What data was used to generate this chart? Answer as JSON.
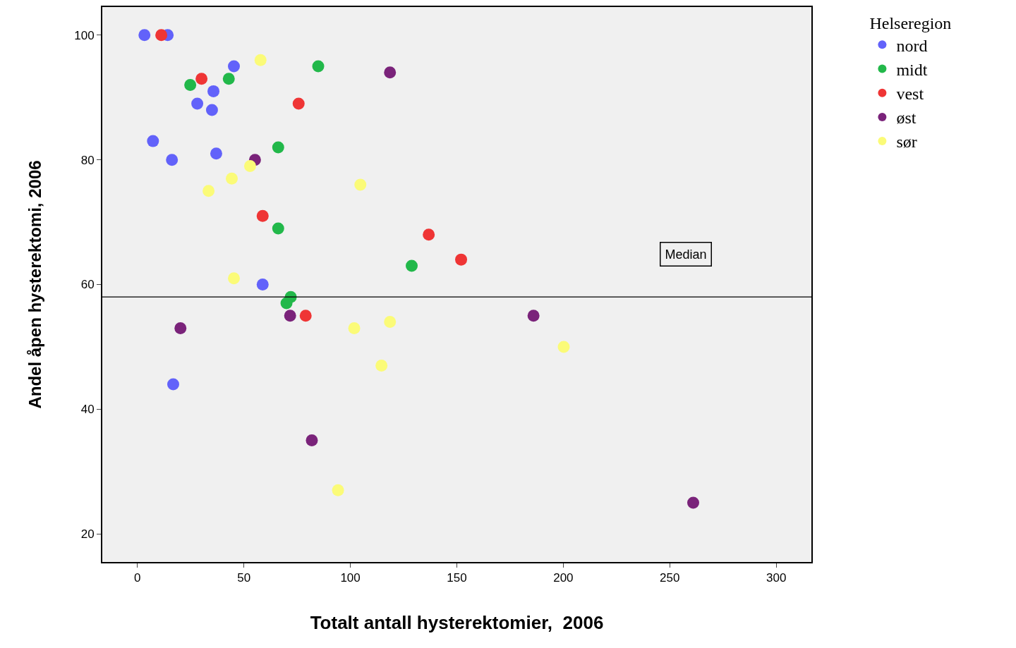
{
  "chart_data": {
    "type": "scatter",
    "xlabel": "Totalt antall hysterektomier,  2006",
    "ylabel": "Andel åpen hysterektomi, 2006",
    "legend_title": "Helseregion",
    "series": [
      {
        "name": "nord",
        "color": "#6262fa",
        "x": [
          3.3,
          14.2,
          45.3,
          35.7,
          28.1,
          35,
          7.3,
          16.2,
          37,
          58.8,
          16.8
        ],
        "values": [
          100,
          100,
          95,
          91,
          89,
          88,
          83,
          80,
          81,
          60,
          44
        ]
      },
      {
        "name": "midt",
        "color": "#22b84a",
        "x": [
          24.8,
          42.9,
          84.9,
          66.1,
          66.1,
          128.8,
          72,
          70
        ],
        "values": [
          92,
          93,
          95,
          82,
          69,
          63,
          58,
          57
        ]
      },
      {
        "name": "vest",
        "color": "#ef3535",
        "x": [
          11.2,
          30.1,
          75.7,
          58.8,
          136.8,
          152,
          79
        ],
        "values": [
          100,
          93,
          89,
          71,
          68,
          64,
          55
        ]
      },
      {
        "name": "øst",
        "color": "#7a237a",
        "x": [
          118.6,
          55.2,
          20.2,
          71.7,
          186,
          81.9,
          261
        ],
        "values": [
          94,
          80,
          53,
          55,
          55,
          35,
          25
        ]
      },
      {
        "name": "sør",
        "color": "#fbfb78",
        "x": [
          57.8,
          52.9,
          44.3,
          33.4,
          104.7,
          45.3,
          101.8,
          118.6,
          114.6,
          200.2,
          94.2
        ],
        "values": [
          96,
          79,
          77,
          75,
          76,
          61,
          53,
          54,
          47,
          50,
          27
        ]
      }
    ],
    "ref_lines": [
      {
        "axis": "y",
        "value": 58,
        "label": "Median",
        "color": "#000000"
      }
    ],
    "xlim": [
      -16.5,
      316.5
    ],
    "ylim": [
      15.5,
      104.5
    ],
    "xticks": [
      0,
      50,
      100,
      150,
      200,
      250,
      300
    ],
    "yticks": [
      20,
      40,
      60,
      80,
      100
    ],
    "grid": false,
    "legend": "top right",
    "marker": "circle"
  }
}
